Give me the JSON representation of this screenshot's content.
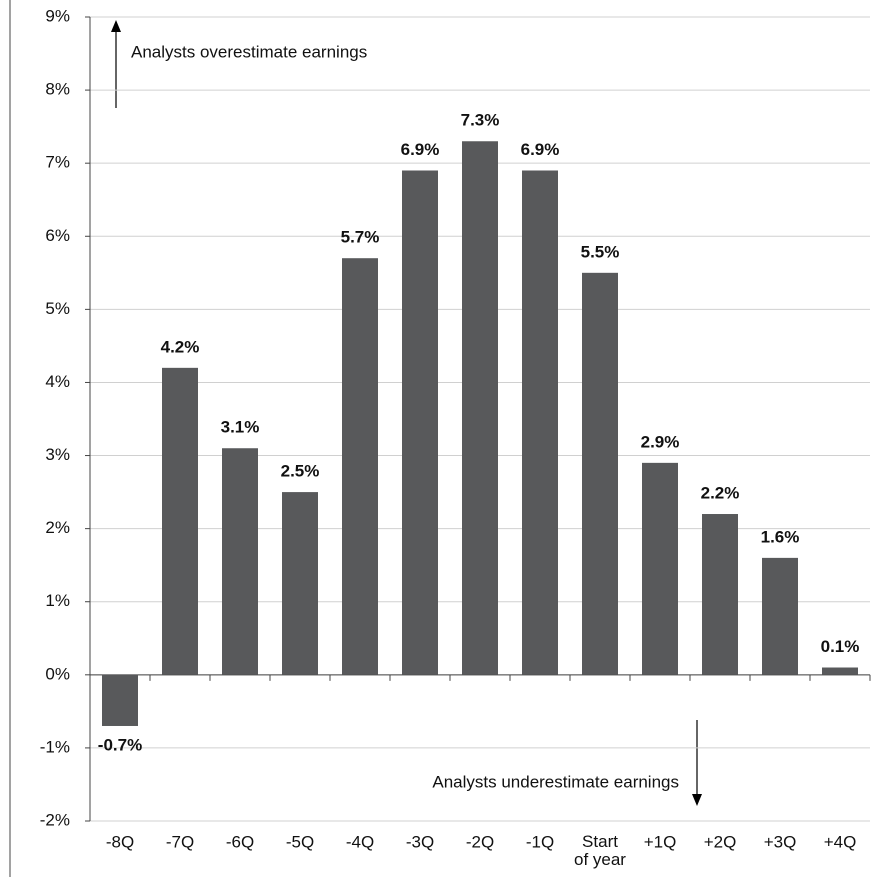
{
  "chart_data": {
    "type": "bar",
    "categories": [
      "-8Q",
      "-7Q",
      "-6Q",
      "-5Q",
      "-4Q",
      "-3Q",
      "-2Q",
      "-1Q",
      "Start of year",
      "+1Q",
      "+2Q",
      "+3Q",
      "+4Q"
    ],
    "values": [
      -0.7,
      4.2,
      3.1,
      2.5,
      5.7,
      6.9,
      7.3,
      6.9,
      5.5,
      2.9,
      2.2,
      1.6,
      0.1
    ],
    "value_labels": [
      "-0.7%",
      "4.2%",
      "3.1%",
      "2.5%",
      "5.7%",
      "6.9%",
      "7.3%",
      "6.9%",
      "5.5%",
      "2.9%",
      "2.2%",
      "1.6%",
      "0.1%"
    ],
    "color": "#58595b",
    "ylim": [
      -2,
      9
    ],
    "yticks": [
      {
        "value": -2,
        "label": "-2%"
      },
      {
        "value": -1,
        "label": "-1%"
      },
      {
        "value": 0,
        "label": "0%"
      },
      {
        "value": 1,
        "label": "1%"
      },
      {
        "value": 2,
        "label": "2%"
      },
      {
        "value": 3,
        "label": "3%"
      },
      {
        "value": 4,
        "label": "4%"
      },
      {
        "value": 5,
        "label": "5%"
      },
      {
        "value": 6,
        "label": "6%"
      },
      {
        "value": 7,
        "label": "7%"
      },
      {
        "value": 8,
        "label": "8%"
      },
      {
        "value": 9,
        "label": "9%"
      }
    ],
    "grid": true,
    "annotations": [
      "Analysts overestimate  earnings",
      "Analysts underestimate  earnings"
    ]
  }
}
